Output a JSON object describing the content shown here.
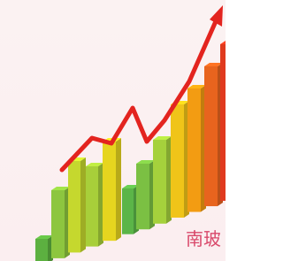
{
  "caption": {
    "text": "南玻"
  }
}
